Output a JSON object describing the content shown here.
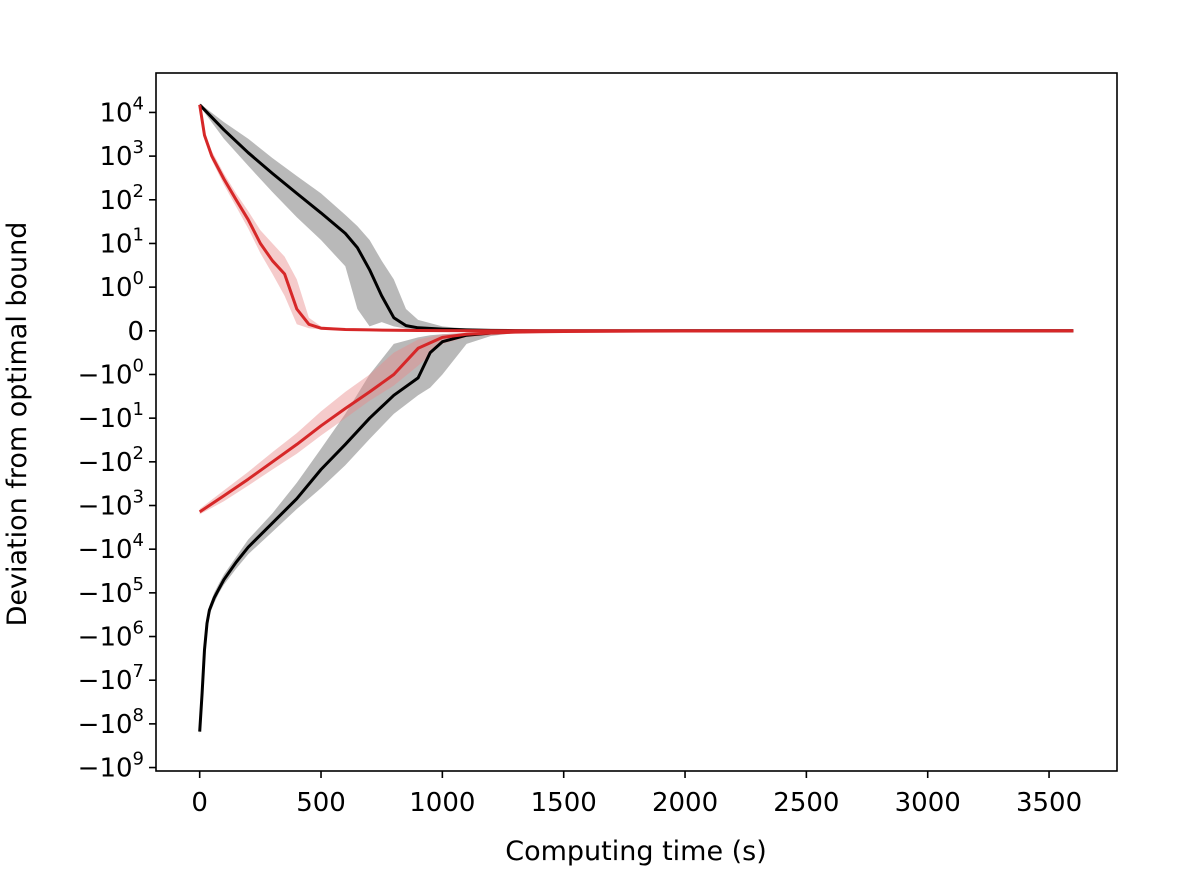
{
  "chart_data": {
    "type": "line",
    "xlabel": "Computing time (s)",
    "ylabel": "Deviation from optimal bound",
    "x_ticks": [
      0,
      500,
      1000,
      1500,
      2000,
      2500,
      3000,
      3500
    ],
    "x_tick_labels": [
      "0",
      "500",
      "1000",
      "1500",
      "2000",
      "2500",
      "3000",
      "3500"
    ],
    "xlim": [
      -180,
      3780
    ],
    "y_scale": "symlog",
    "y_ticks": [
      10000,
      1000,
      100,
      10,
      1,
      0,
      -1,
      -10,
      -100,
      -1000,
      -10000,
      -100000,
      -1000000,
      -10000000,
      -100000000,
      -1000000000
    ],
    "y_tick_labels": [
      {
        "base": "10",
        "exp": "4"
      },
      {
        "base": "10",
        "exp": "3"
      },
      {
        "base": "10",
        "exp": "2"
      },
      {
        "base": "10",
        "exp": "1"
      },
      {
        "base": "10",
        "exp": "0"
      },
      {
        "base": "0",
        "exp": ""
      },
      {
        "base": "−10",
        "exp": "0"
      },
      {
        "base": "−10",
        "exp": "1"
      },
      {
        "base": "−10",
        "exp": "2"
      },
      {
        "base": "−10",
        "exp": "3"
      },
      {
        "base": "−10",
        "exp": "4"
      },
      {
        "base": "−10",
        "exp": "5"
      },
      {
        "base": "−10",
        "exp": "6"
      },
      {
        "base": "−10",
        "exp": "7"
      },
      {
        "base": "−10",
        "exp": "8"
      },
      {
        "base": "−10",
        "exp": "9"
      }
    ],
    "ylim": [
      -1200000000,
      80000
    ],
    "grid": false,
    "series": [
      {
        "color": "#000000",
        "band_color": "#7f7f7f",
        "upper": {
          "x": [
            0,
            100,
            200,
            300,
            400,
            500,
            600,
            650,
            700,
            750,
            800,
            850,
            900,
            1000,
            1100,
            1200,
            1300,
            1400,
            2000,
            3600
          ],
          "y": [
            15000,
            4000,
            1200,
            400,
            140,
            50,
            17,
            8,
            2.5,
            0.8,
            0.3,
            0.12,
            0.07,
            0.04,
            0.02,
            0.01,
            0.005,
            0.002,
            0.001,
            0.001
          ],
          "band_high": [
            16000,
            6000,
            2500,
            900,
            350,
            140,
            45,
            25,
            12,
            4,
            1.5,
            0.5,
            0.25,
            0.1,
            0.05,
            0.02,
            0.01,
            0.005,
            0.002,
            0.001
          ],
          "band_low": [
            14000,
            2500,
            600,
            150,
            40,
            12,
            3,
            0.5,
            0.1,
            0.2,
            0.1,
            0.05,
            0.03,
            0.02,
            0.01,
            0.005,
            0.002,
            0.001,
            0.0005,
            0.0005
          ]
        },
        "lower": {
          "x": [
            0,
            10,
            20,
            30,
            40,
            60,
            80,
            100,
            150,
            200,
            300,
            400,
            500,
            600,
            700,
            800,
            900,
            950,
            1000,
            1100,
            1200,
            1300,
            1400,
            1500,
            2000,
            3600
          ],
          "y": [
            -150000000,
            -20000000,
            -2000000,
            -500000,
            -250000,
            -130000,
            -80000,
            -50000,
            -20000,
            -9000,
            -2500,
            -700,
            -150,
            -40,
            -10,
            -3,
            -1.2,
            -0.5,
            -0.25,
            -0.1,
            -0.05,
            -0.02,
            -0.01,
            -0.005,
            -0.001,
            -0.001
          ],
          "band_high": [
            -120000000,
            -15000000,
            -1500000,
            -400000,
            -200000,
            -100000,
            -60000,
            -38000,
            -15000,
            -6000,
            -1500,
            -300,
            -50,
            -8,
            -1,
            -0.3,
            -0.15,
            -0.1,
            -0.08,
            -0.05,
            -0.02,
            -0.01,
            -0.005,
            -0.002,
            -0.001,
            -0.0005
          ],
          "band_low": [
            -180000000,
            -25000000,
            -2500000,
            -650000,
            -320000,
            -170000,
            -100000,
            -65000,
            -28000,
            -13000,
            -4000,
            -1200,
            -400,
            -120,
            -30,
            -8,
            -3,
            -2,
            -1,
            -0.3,
            -0.12,
            -0.05,
            -0.02,
            -0.01,
            -0.002,
            -0.001
          ]
        }
      },
      {
        "color": "#d62728",
        "band_color": "#e88c8c",
        "upper": {
          "x": [
            0,
            20,
            50,
            100,
            150,
            200,
            250,
            300,
            350,
            400,
            450,
            500,
            600,
            700,
            800,
            900,
            1000,
            1200,
            1500,
            2000,
            3600
          ],
          "y": [
            15000,
            3000,
            1000,
            300,
            100,
            35,
            10,
            4,
            2,
            0.5,
            0.15,
            0.06,
            0.03,
            0.02,
            0.012,
            0.008,
            0.005,
            0.003,
            0.002,
            0.001,
            0.001
          ],
          "band_high": [
            16000,
            3500,
            1300,
            400,
            140,
            55,
            20,
            10,
            5,
            1.5,
            0.3,
            0.1,
            0.05,
            0.03,
            0.02,
            0.012,
            0.008,
            0.005,
            0.003,
            0.001,
            0.001
          ],
          "band_low": [
            14000,
            2500,
            800,
            220,
            70,
            22,
            6,
            2,
            0.8,
            0.15,
            0.06,
            0.03,
            0.02,
            0.012,
            0.008,
            0.005,
            0.003,
            0.002,
            0.001,
            0.0005,
            0.0005
          ]
        },
        "lower": {
          "x": [
            0,
            100,
            200,
            300,
            400,
            500,
            600,
            700,
            800,
            900,
            1000,
            1100,
            1200,
            1300,
            1400,
            1500,
            1700,
            2000,
            3600
          ],
          "y": [
            -1400,
            -600,
            -250,
            -100,
            -40,
            -15,
            -6,
            -2.5,
            -1,
            -0.4,
            -0.15,
            -0.08,
            -0.05,
            -0.03,
            -0.02,
            -0.015,
            -0.008,
            -0.004,
            -0.001
          ],
          "band_high": [
            -1200,
            -450,
            -170,
            -60,
            -22,
            -7,
            -2.5,
            -1,
            -0.5,
            -0.2,
            -0.08,
            -0.04,
            -0.025,
            -0.015,
            -0.01,
            -0.008,
            -0.004,
            -0.002,
            -0.0005
          ],
          "band_low": [
            -1600,
            -800,
            -350,
            -150,
            -65,
            -25,
            -10,
            -4,
            -1.8,
            -0.8,
            -0.3,
            -0.15,
            -0.1,
            -0.06,
            -0.04,
            -0.03,
            -0.015,
            -0.006,
            -0.002
          ]
        }
      }
    ]
  }
}
